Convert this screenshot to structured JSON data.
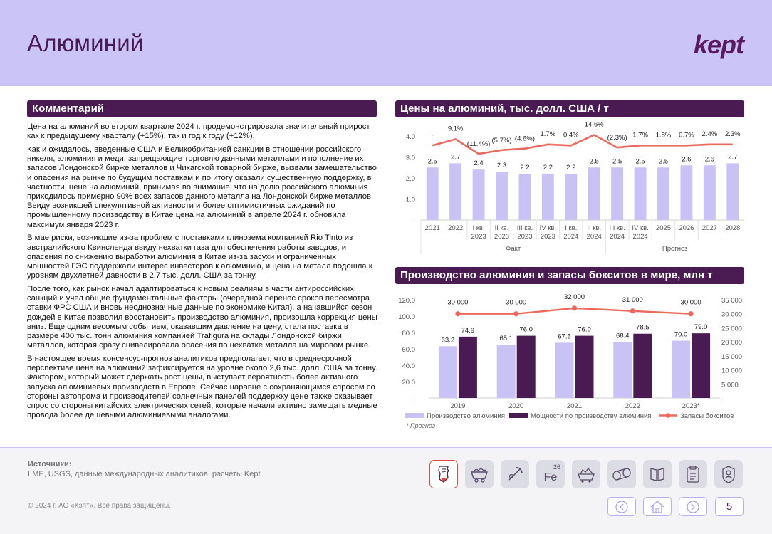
{
  "header": {
    "title": "Алюминий",
    "logo": "kept"
  },
  "comment": {
    "heading": "Комментарий",
    "paragraphs": [
      "Цена на алюминий во втором квартале 2024 г. продемонстрировала значительный прирост как к предыдущему кварталу (+15%), так и год к году (+12%).",
      "Как и ожидалось, введенные США и Великобританией санкции в отношении российского никеля, алюминия и меди, запрещающие торговлю данными металлами и пополнение их запасов Лондонской бирже металлов и Чикагской товарной бирже, вызвали замешательство и опасения на рынке по будущим поставкам и по итогу оказали существенную поддержку, в частности, цене на алюминий, принимая во внимание, что на долю российского алюминия приходилось примерно 90% всех запасов данного металла на Лондонской бирже металлов. Ввиду возникшей спекулятивной активности и более оптимистичных ожиданий по промышленному производству в Китае цена на алюминий в апреле 2024 г. обновила максимум января 2023 г.",
      "В мае риски, возникшие из-за проблем с поставками глинозема компанией Rio Tinto из австралийского Квинсленда ввиду нехватки газа для обеспечения работы заводов, и опасения по снижению выработки алюминия в Китае из-за засухи и ограниченных мощностей ГЭС поддержали интерес инвесторов к алюминию, и цена на металл подошла к уровням двухлетней давности в 2,7 тыс. долл. США за тонну.",
      "После того, как рынок начал адаптироваться к новым реалиям в части антироссийских санкций и учел общие фундаментальные факторы (очередной перенос сроков пересмотра ставки ФРС США и вновь неоднозначные данные по экономике Китая), а начавшийся сезон дождей в Китае позволил восстановить производство алюминия, произошла коррекция цены вниз. Еще одним весомым событием, оказавшим давление на цену, стала поставка в размере 400 тыс. тонн алюминия компанией Trafigura на склады Лондонской биржи металлов, которая сразу снивелировала опасения по нехватке металла на мировом рынке.",
      "В настоящее время консенсус-прогноз аналитиков предполагает, что в среднесрочной перспективе цена на алюминий зафиксируется на уровне около 2,6 тыс. долл. США за тонну. Фактором, который может сдержать рост цены, выступает вероятность более активного запуска алюминиевых производств в Европе. Сейчас наравне с сохраняющимся спросом со стороны автопрома и производителей солнечных панелей поддержку цене также оказывает спрос со стороны китайских электрических сетей, которые начали активно замещать медные провода более дешевыми алюминиевыми аналогами."
    ]
  },
  "chart_data": [
    {
      "type": "bar",
      "title": "Цены на алюминий, тыс. долл. США / т",
      "categories": [
        [
          "2021"
        ],
        [
          "2022"
        ],
        [
          "I кв.",
          "2023"
        ],
        [
          "II кв.",
          "2023"
        ],
        [
          "III кв.",
          "2023"
        ],
        [
          "IV кв.",
          "2023"
        ],
        [
          "I кв.",
          "2024"
        ],
        [
          "II кв.",
          "2024"
        ],
        [
          "III кв.",
          "2024"
        ],
        [
          "IV кв.",
          "2024"
        ],
        [
          "2025"
        ],
        [
          "2026"
        ],
        [
          "2027"
        ],
        [
          "2028"
        ]
      ],
      "values": [
        2.5,
        2.7,
        2.4,
        2.3,
        2.2,
        2.2,
        2.2,
        2.5,
        2.5,
        2.5,
        2.5,
        2.6,
        2.6,
        2.7
      ],
      "growth_line": [
        3.55,
        3.85,
        3.15,
        3.33,
        3.4,
        3.6,
        3.55,
        4.05,
        3.45,
        3.55,
        3.55,
        3.55,
        3.6,
        3.6
      ],
      "growth_labels": [
        "-",
        "9.1%",
        "(11.4%)",
        "(5.7%)",
        "(4.6%)",
        "1.7%",
        "0.4%",
        "14.6%",
        "(2.3%)",
        "1.7%",
        "1.8%",
        "0.7%",
        "2.4%",
        "2.3%"
      ],
      "yticks": [
        "-",
        "1.0",
        "2.0",
        "3.0",
        "4.0"
      ],
      "ylim": [
        0,
        4
      ],
      "groups": [
        {
          "label": "Факт",
          "from": 0,
          "to": 7
        },
        {
          "label": "Прогноз",
          "from": 8,
          "to": 13
        }
      ],
      "colors": {
        "bar": "#c8c2f5",
        "line": "#ec6a5c"
      }
    },
    {
      "type": "bar",
      "title": "Производство алюминия и запасы бокситов в мире, млн т",
      "categories": [
        "2019",
        "2020",
        "2021",
        "2022",
        "2023*"
      ],
      "series": [
        {
          "name": "Производство алюминия",
          "values": [
            63.2,
            65.1,
            67.5,
            68.4,
            70.0
          ],
          "color": "#c8c2f5"
        },
        {
          "name": "Мощности по производству алюминия",
          "values": [
            74.9,
            76.0,
            76.0,
            78.5,
            79.0
          ],
          "color": "#4a1a52"
        },
        {
          "name": "Запасы бокситов",
          "values": [
            30000,
            30000,
            32000,
            31000,
            30000
          ],
          "labels": [
            "30 000",
            "30 000",
            "32 000",
            "31 000",
            "30 000"
          ],
          "color": "#ec6a5c"
        }
      ],
      "yticks_left": [
        "-",
        "20.0",
        "40.0",
        "60.0",
        "80.0",
        "100.0",
        "120.0"
      ],
      "yticks_right": [
        "-",
        "5 000",
        "10 000",
        "15 000",
        "20 000",
        "25 000",
        "30 000",
        "35 000"
      ],
      "ylim_left": [
        0,
        120
      ],
      "ylim_right": [
        0,
        35000
      ],
      "note": "* Прогноз"
    }
  ],
  "footer": {
    "sources_label": "Источники:",
    "sources_text": "LME, USGS, данные международных аналитиков, расчеты Kept",
    "copyright": "© 2024 г. АО «Кэпт». Все права защищены.",
    "fe_label": "Fe",
    "fe_number": "26",
    "page_number": "5"
  }
}
